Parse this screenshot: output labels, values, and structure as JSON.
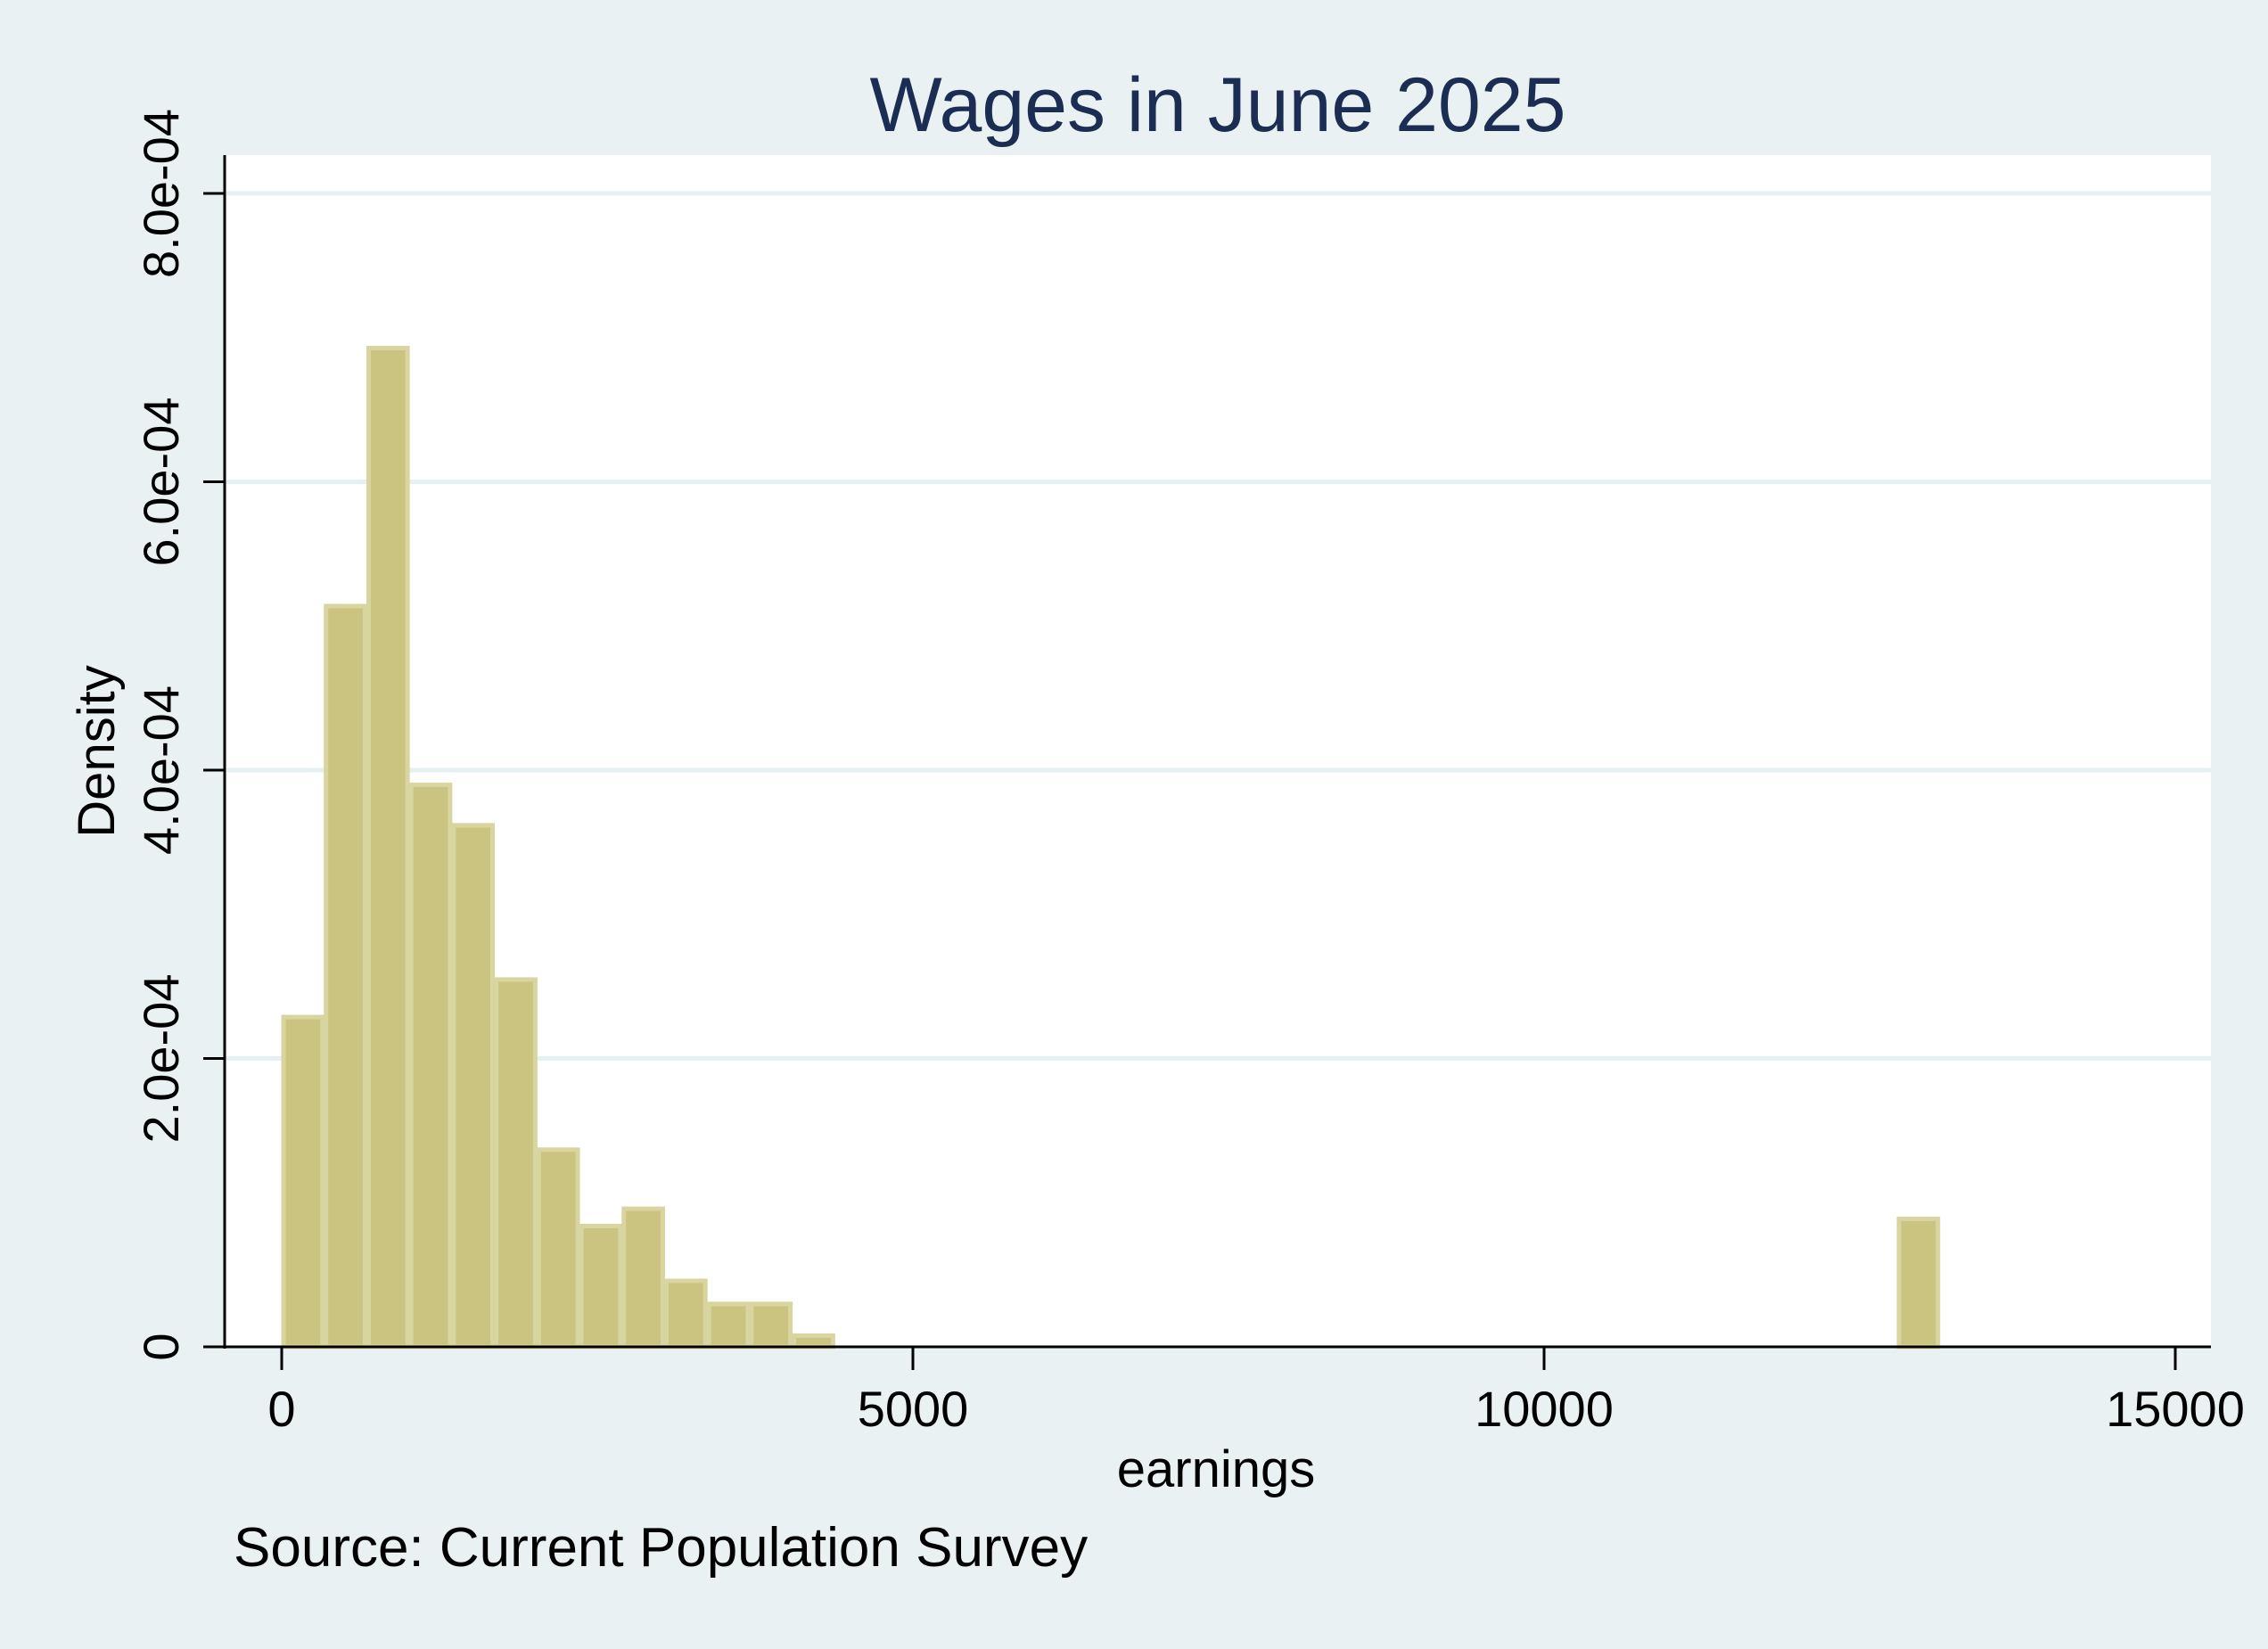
{
  "chart_data": {
    "type": "bar",
    "subtype": "histogram",
    "title": "Wages in June 2025",
    "xlabel": "earnings",
    "ylabel": "Density",
    "note": "Source: Current Population Survey",
    "xlim": [
      -450,
      15150
    ],
    "ylim": [
      0,
      0.00082
    ],
    "x_ticks": [
      0,
      5000,
      10000,
      15000
    ],
    "x_tick_labels": [
      "0",
      "5000",
      "10000",
      "15000"
    ],
    "y_ticks": [
      0,
      0.0002,
      0.0004,
      0.0006,
      0.0008
    ],
    "y_tick_labels": [
      "0",
      "2.0e-04",
      "4.0e-04",
      "6.0e-04",
      "8.0e-04"
    ],
    "grid": true,
    "legend": null,
    "bin_width": 337,
    "bins": [
      {
        "start": 0,
        "density": 0.00023
      },
      {
        "start": 337,
        "density": 0.000515
      },
      {
        "start": 674,
        "density": 0.000694
      },
      {
        "start": 1011,
        "density": 0.000391
      },
      {
        "start": 1348,
        "density": 0.000363
      },
      {
        "start": 1685,
        "density": 0.000256
      },
      {
        "start": 2022,
        "density": 0.000138
      },
      {
        "start": 2359,
        "density": 8.5e-05
      },
      {
        "start": 2696,
        "density": 9.7e-05
      },
      {
        "start": 3033,
        "density": 4.7e-05
      },
      {
        "start": 3370,
        "density": 3.1e-05
      },
      {
        "start": 3707,
        "density": 3.1e-05
      },
      {
        "start": 4044,
        "density": 9e-06
      },
      {
        "start": 12797,
        "density": 9e-05
      }
    ],
    "colors": {
      "bar_fill": "#cbc481",
      "bar_edge": "#d9d5a1",
      "background": "#eaf1f3",
      "plot_background": "#ffffff",
      "gridline": "#e6eff1",
      "title": "#1c2d53",
      "text": "#000000"
    }
  }
}
